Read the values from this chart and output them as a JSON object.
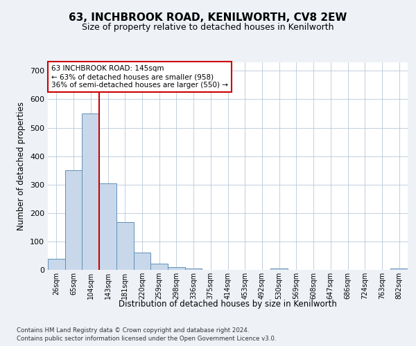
{
  "title": "63, INCHBROOK ROAD, KENILWORTH, CV8 2EW",
  "subtitle": "Size of property relative to detached houses in Kenilworth",
  "xlabel": "Distribution of detached houses by size in Kenilworth",
  "ylabel": "Number of detached properties",
  "footnote1": "Contains HM Land Registry data © Crown copyright and database right 2024.",
  "footnote2": "Contains public sector information licensed under the Open Government Licence v3.0.",
  "bin_labels": [
    "26sqm",
    "65sqm",
    "104sqm",
    "143sqm",
    "181sqm",
    "220sqm",
    "259sqm",
    "298sqm",
    "336sqm",
    "375sqm",
    "414sqm",
    "453sqm",
    "492sqm",
    "530sqm",
    "569sqm",
    "608sqm",
    "647sqm",
    "686sqm",
    "724sqm",
    "763sqm",
    "802sqm"
  ],
  "bar_heights": [
    40,
    350,
    550,
    305,
    168,
    60,
    22,
    10,
    5,
    0,
    0,
    0,
    0,
    5,
    0,
    0,
    0,
    0,
    0,
    0,
    5
  ],
  "bar_color": "#c8d8ea",
  "bar_edge_color": "#6090b8",
  "vline_color": "#cc0000",
  "vline_x_index": 3,
  "ylim": [
    0,
    730
  ],
  "yticks": [
    0,
    100,
    200,
    300,
    400,
    500,
    600,
    700
  ],
  "annotation_title": "63 INCHBROOK ROAD: 145sqm",
  "annotation_line1": "← 63% of detached houses are smaller (958)",
  "annotation_line2": "36% of semi-detached houses are larger (550) →",
  "annotation_box_color": "white",
  "annotation_box_edge": "#cc0000",
  "background_color": "#eef2f7",
  "plot_background": "#ffffff",
  "grid_color": "#b8c8d8",
  "title_fontsize": 11,
  "subtitle_fontsize": 9
}
